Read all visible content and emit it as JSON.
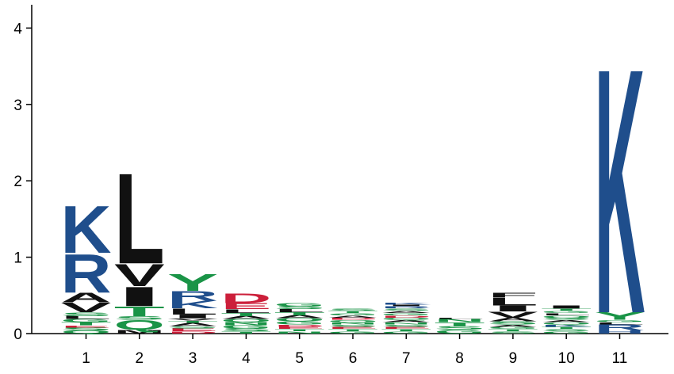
{
  "chart_data": {
    "type": "sequence-logo",
    "ylim": [
      0,
      4.2
    ],
    "yticks": [
      "0",
      "1",
      "2",
      "3",
      "4"
    ],
    "positions": [
      "1",
      "2",
      "3",
      "4",
      "5",
      "6",
      "7",
      "8",
      "9",
      "10",
      "11"
    ],
    "colors": {
      "basic": "#1f4e8c",
      "hydrophobic": "#111111",
      "polar": "#1a9447",
      "acidic": "#cc1f3a"
    },
    "residue_classes": {
      "K": "basic",
      "R": "basic",
      "H": "basic",
      "A": "hydrophobic",
      "V": "hydrophobic",
      "L": "hydrophobic",
      "I": "hydrophobic",
      "M": "hydrophobic",
      "F": "hydrophobic",
      "W": "hydrophobic",
      "P": "hydrophobic",
      "Y": "polar",
      "T": "polar",
      "S": "polar",
      "Q": "polar",
      "N": "polar",
      "G": "polar",
      "C": "polar",
      "D": "acidic",
      "E": "acidic"
    },
    "columns": [
      {
        "position": "1",
        "letters": [
          {
            "aa": "Q",
            "h": 0.04
          },
          {
            "aa": "S",
            "h": 0.04
          },
          {
            "aa": "E",
            "h": 0.03
          },
          {
            "aa": "T",
            "h": 0.04
          },
          {
            "aa": "G",
            "h": 0.04
          },
          {
            "aa": "L",
            "h": 0.04
          },
          {
            "aa": "S",
            "h": 0.05
          },
          {
            "aa": "V",
            "h": 0.13
          },
          {
            "aa": "A",
            "h": 0.13
          },
          {
            "aa": "R",
            "h": 0.52
          },
          {
            "aa": "K",
            "h": 0.64
          }
        ]
      },
      {
        "position": "2",
        "letters": [
          {
            "aa": "M",
            "h": 0.05
          },
          {
            "aa": "Q",
            "h": 0.13
          },
          {
            "aa": "S",
            "h": 0.05
          },
          {
            "aa": "T",
            "h": 0.13
          },
          {
            "aa": "I",
            "h": 0.26
          },
          {
            "aa": "V",
            "h": 0.3
          },
          {
            "aa": "L",
            "h": 1.22
          }
        ]
      },
      {
        "position": "3",
        "letters": [
          {
            "aa": "D",
            "h": 0.03
          },
          {
            "aa": "E",
            "h": 0.04
          },
          {
            "aa": "S",
            "h": 0.03
          },
          {
            "aa": "A",
            "h": 0.04
          },
          {
            "aa": "T",
            "h": 0.03
          },
          {
            "aa": "V",
            "h": 0.03
          },
          {
            "aa": "I",
            "h": 0.05
          },
          {
            "aa": "L",
            "h": 0.08
          },
          {
            "aa": "K",
            "h": 0.1
          },
          {
            "aa": "R",
            "h": 0.13
          },
          {
            "aa": "Y",
            "h": 0.23
          }
        ]
      },
      {
        "position": "4",
        "letters": [
          {
            "aa": "T",
            "h": 0.03
          },
          {
            "aa": "S",
            "h": 0.04
          },
          {
            "aa": "G",
            "h": 0.04
          },
          {
            "aa": "N",
            "h": 0.04
          },
          {
            "aa": "Q",
            "h": 0.04
          },
          {
            "aa": "A",
            "h": 0.04
          },
          {
            "aa": "T",
            "h": 0.04
          },
          {
            "aa": "L",
            "h": 0.05
          },
          {
            "aa": "E",
            "h": 0.08
          },
          {
            "aa": "D",
            "h": 0.13
          }
        ]
      },
      {
        "position": "5",
        "letters": [
          {
            "aa": "N",
            "h": 0.03
          },
          {
            "aa": "T",
            "h": 0.03
          },
          {
            "aa": "E",
            "h": 0.03
          },
          {
            "aa": "D",
            "h": 0.03
          },
          {
            "aa": "G",
            "h": 0.04
          },
          {
            "aa": "Q",
            "h": 0.04
          },
          {
            "aa": "A",
            "h": 0.04
          },
          {
            "aa": "T",
            "h": 0.04
          },
          {
            "aa": "L",
            "h": 0.04
          },
          {
            "aa": "S",
            "h": 0.04
          },
          {
            "aa": "G",
            "h": 0.04
          }
        ]
      },
      {
        "position": "6",
        "letters": [
          {
            "aa": "G",
            "h": 0.03
          },
          {
            "aa": "T",
            "h": 0.03
          },
          {
            "aa": "E",
            "h": 0.03
          },
          {
            "aa": "S",
            "h": 0.03
          },
          {
            "aa": "N",
            "h": 0.03
          },
          {
            "aa": "Q",
            "h": 0.03
          },
          {
            "aa": "D",
            "h": 0.03
          },
          {
            "aa": "A",
            "h": 0.03
          },
          {
            "aa": "G",
            "h": 0.03
          },
          {
            "aa": "T",
            "h": 0.03
          },
          {
            "aa": "S",
            "h": 0.03
          }
        ]
      },
      {
        "position": "7",
        "letters": [
          {
            "aa": "G",
            "h": 0.03
          },
          {
            "aa": "T",
            "h": 0.03
          },
          {
            "aa": "E",
            "h": 0.03
          },
          {
            "aa": "S",
            "h": 0.03
          },
          {
            "aa": "N",
            "h": 0.03
          },
          {
            "aa": "A",
            "h": 0.03
          },
          {
            "aa": "Q",
            "h": 0.03
          },
          {
            "aa": "D",
            "h": 0.03
          },
          {
            "aa": "G",
            "h": 0.03
          },
          {
            "aa": "A",
            "h": 0.03
          },
          {
            "aa": "S",
            "h": 0.03
          },
          {
            "aa": "R",
            "h": 0.03
          },
          {
            "aa": "I",
            "h": 0.02
          },
          {
            "aa": "K",
            "h": 0.03
          }
        ]
      },
      {
        "position": "8",
        "letters": [
          {
            "aa": "G",
            "h": 0.05
          },
          {
            "aa": "S",
            "h": 0.05
          },
          {
            "aa": "T",
            "h": 0.05
          },
          {
            "aa": "N",
            "h": 0.04
          },
          {
            "aa": "L",
            "h": 0.01
          }
        ]
      },
      {
        "position": "9",
        "letters": [
          {
            "aa": "S",
            "h": 0.03
          },
          {
            "aa": "T",
            "h": 0.03
          },
          {
            "aa": "G",
            "h": 0.03
          },
          {
            "aa": "A",
            "h": 0.03
          },
          {
            "aa": "S",
            "h": 0.04
          },
          {
            "aa": "A",
            "h": 0.05
          },
          {
            "aa": "V",
            "h": 0.08
          },
          {
            "aa": "I",
            "h": 0.08
          },
          {
            "aa": "L",
            "h": 0.1
          },
          {
            "aa": "F",
            "h": 0.06
          }
        ]
      },
      {
        "position": "10",
        "letters": [
          {
            "aa": "G",
            "h": 0.03
          },
          {
            "aa": "S",
            "h": 0.03
          },
          {
            "aa": "T",
            "h": 0.03
          },
          {
            "aa": "K",
            "h": 0.03
          },
          {
            "aa": "Q",
            "h": 0.03
          },
          {
            "aa": "A",
            "h": 0.03
          },
          {
            "aa": "S",
            "h": 0.03
          },
          {
            "aa": "Q",
            "h": 0.03
          },
          {
            "aa": "L",
            "h": 0.03
          },
          {
            "aa": "G",
            "h": 0.03
          },
          {
            "aa": "T",
            "h": 0.03
          },
          {
            "aa": "I",
            "h": 0.04
          }
        ]
      },
      {
        "position": "11",
        "letters": [
          {
            "aa": "H",
            "h": 0.04
          },
          {
            "aa": "R",
            "h": 0.08
          },
          {
            "aa": "L",
            "h": 0.03
          },
          {
            "aa": "G",
            "h": 0.03
          },
          {
            "aa": "Y",
            "h": 0.1
          },
          {
            "aa": "K",
            "h": 3.3
          }
        ]
      }
    ]
  }
}
